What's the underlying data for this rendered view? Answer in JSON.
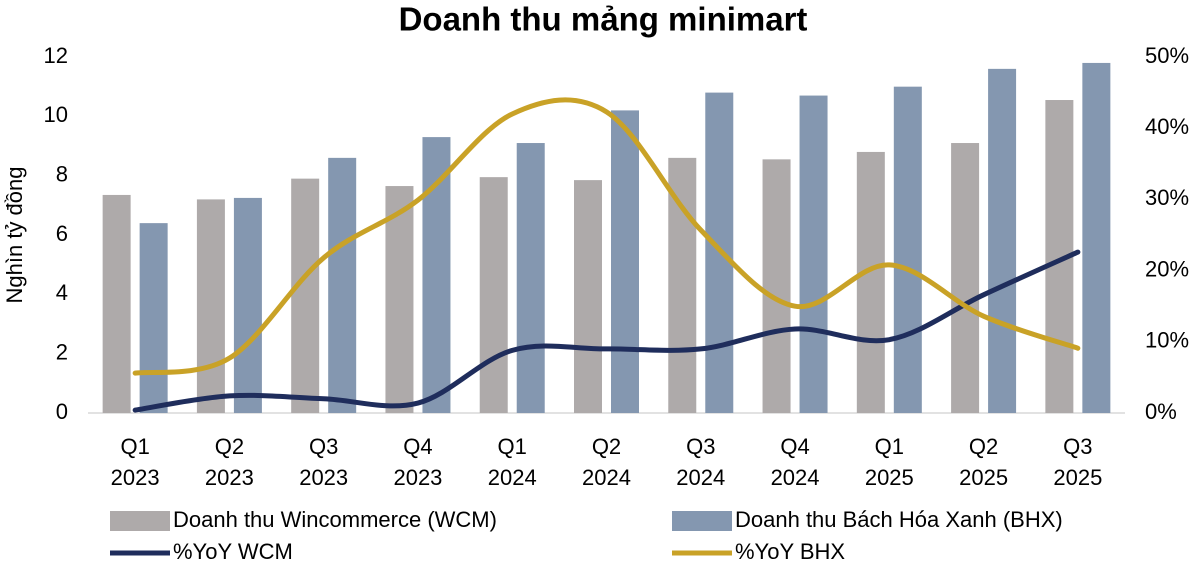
{
  "chart_data": {
    "type": "bar-line",
    "title": "Doanh thu mảng minimart",
    "y_label": "Nghìn tỷ đồng",
    "categories": [
      "Q1\n2023",
      "Q2\n2023",
      "Q3\n2023",
      "Q4\n2023",
      "Q1\n2024",
      "Q2\n2024",
      "Q3\n2024",
      "Q4\n2024",
      "Q1\n2025",
      "Q2\n2025",
      "Q3\n2025"
    ],
    "series": [
      {
        "name": "Doanh thu Wincommerce (WCM)",
        "type": "bar",
        "color": "#aeaaaa",
        "values": [
          7.35,
          7.2,
          7.9,
          7.65,
          7.95,
          7.85,
          8.6,
          8.55,
          8.8,
          9.1,
          10.55
        ]
      },
      {
        "name": "Doanh thu Bách Hóa Xanh (BHX)",
        "type": "bar",
        "color": "#8497b0",
        "values": [
          6.4,
          7.25,
          8.6,
          9.3,
          9.1,
          10.2,
          10.8,
          10.7,
          11.0,
          11.6,
          11.8
        ]
      },
      {
        "name": "%YoY WCM",
        "type": "line",
        "axis": "y2",
        "color": "#1f2d5c",
        "values": [
          0.4,
          2.4,
          2.0,
          1.4,
          8.8,
          9.0,
          9.0,
          11.8,
          10.3,
          16.6,
          22.6
        ]
      },
      {
        "name": "%YoY BHX",
        "type": "line",
        "axis": "y2",
        "color": "#c9a227",
        "values": [
          5.6,
          7.7,
          21.8,
          29.9,
          42.0,
          42.3,
          25.7,
          15.0,
          20.8,
          13.6,
          9.1
        ]
      }
    ],
    "ylim": [
      0,
      12
    ],
    "yticks": [
      0,
      2,
      4,
      6,
      8,
      10,
      12
    ],
    "y2lim": [
      0,
      50
    ],
    "y2ticks": [
      {
        "value": 0,
        "label": "0%"
      },
      {
        "value": 10,
        "label": "10%"
      },
      {
        "value": 20,
        "label": "20%"
      },
      {
        "value": 30,
        "label": "30%"
      },
      {
        "value": 40,
        "label": "40%"
      },
      {
        "value": 50,
        "label": "50%"
      }
    ]
  }
}
